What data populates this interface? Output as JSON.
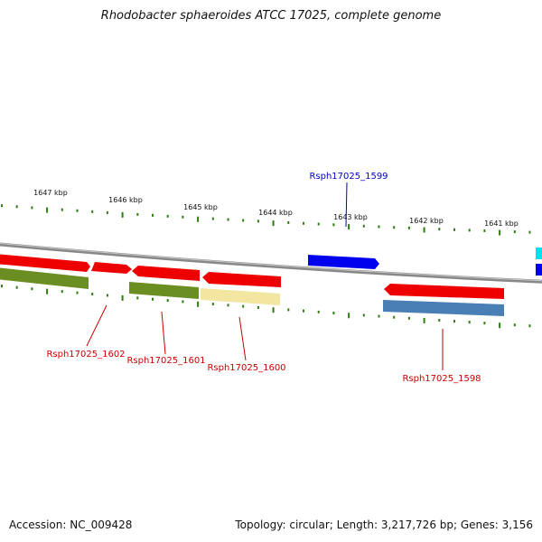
{
  "title": "Rhodobacter sphaeroides ATCC 17025, complete genome",
  "footer": {
    "accession": "Accession: NC_009428",
    "stats": "Topology: circular; Length: 3,217,726 bp; Genes: 3,156"
  },
  "scale_labels": [
    "1647 kbp",
    "1646 kbp",
    "1645 kbp",
    "1644 kbp",
    "1643 kbp",
    "1642 kbp",
    "1641 kbp"
  ],
  "gene_labels": [
    {
      "name": "Rsph17025_1602",
      "color": "#cc0000"
    },
    {
      "name": "Rsph17025_1601",
      "color": "#cc0000"
    },
    {
      "name": "Rsph17025_1600",
      "color": "#cc0000"
    },
    {
      "name": "Rsph17025_1599",
      "color": "#0000cc"
    },
    {
      "name": "Rsph17025_1598",
      "color": "#cc0000"
    }
  ],
  "colors": {
    "gene_red": "#ee0000",
    "gene_blue": "#0000ee",
    "gene_olive": "#6b8e23",
    "gene_pale_yellow": "#f3e6a0",
    "gene_steel_blue": "#4a7fb5",
    "gene_cyan": "#00e0f0",
    "backbone": "#888888",
    "ticks": "#2e7d12"
  }
}
